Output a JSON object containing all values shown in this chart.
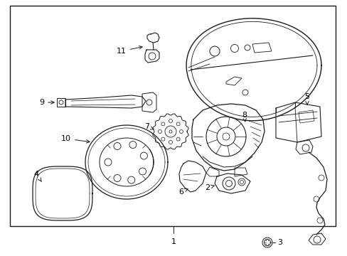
{
  "background_color": "#ffffff",
  "line_color": "#1a1a1a",
  "text_color": "#000000",
  "fig_width": 4.89,
  "fig_height": 3.6,
  "dpi": 100,
  "border": [
    14,
    8,
    472,
    318
  ]
}
